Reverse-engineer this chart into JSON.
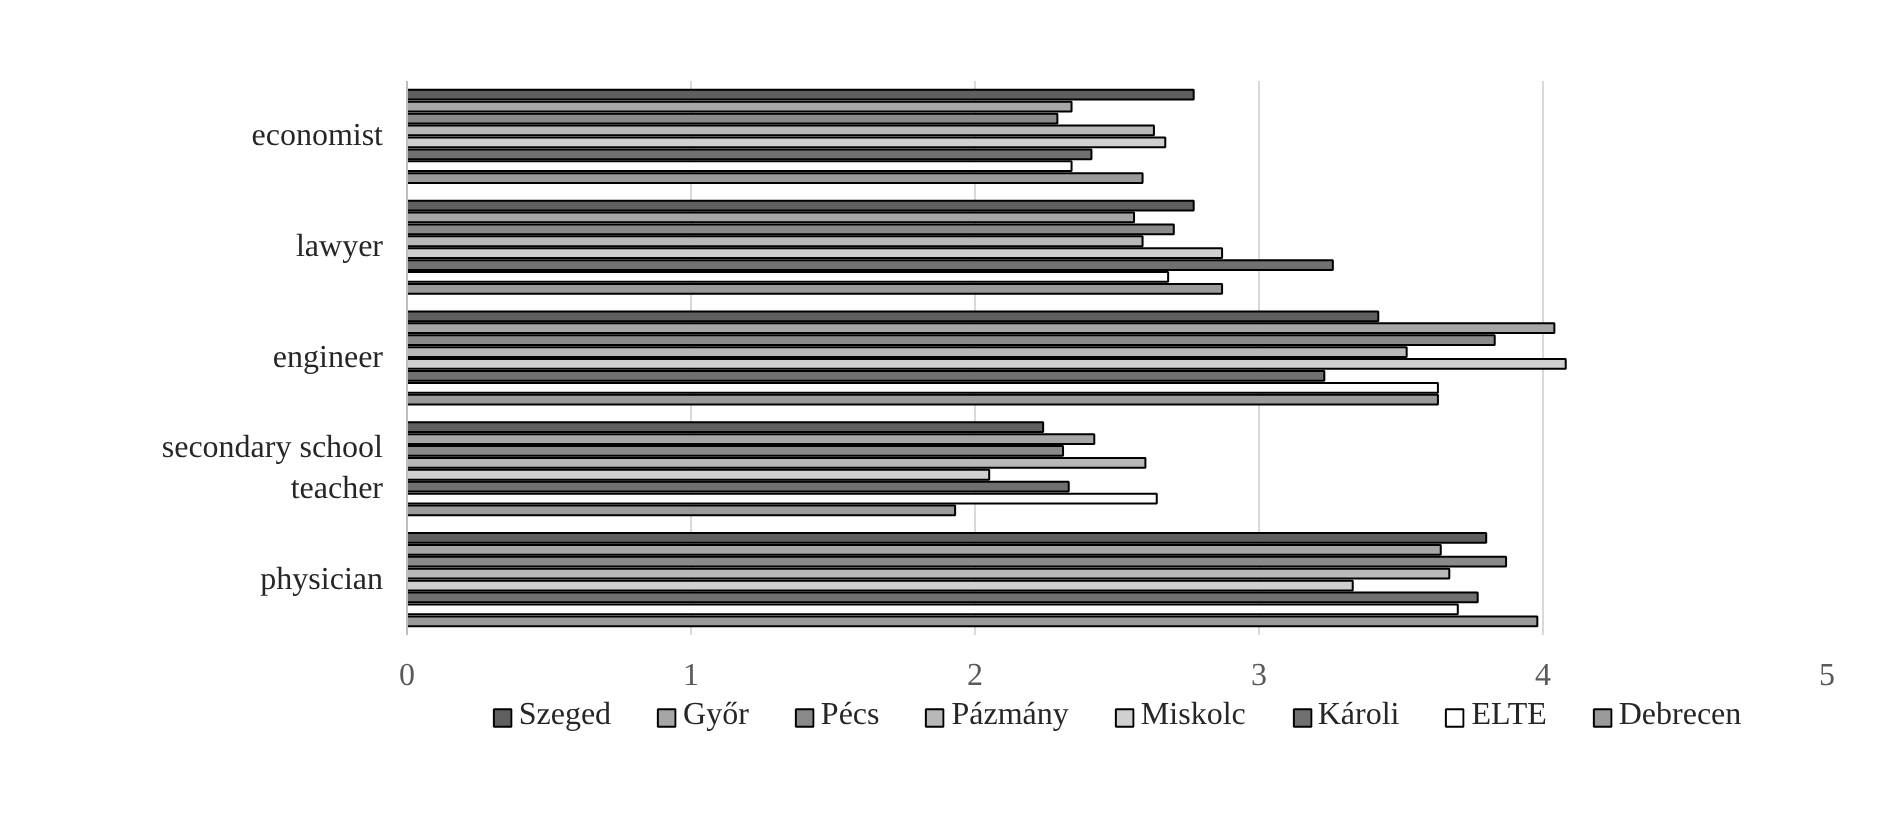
{
  "chart_data": {
    "type": "bar",
    "orientation": "horizontal",
    "categories": [
      "economist",
      "lawyer",
      "engineer",
      "secondary school teacher",
      "physician"
    ],
    "series": [
      {
        "name": "Szeged",
        "color": "#5f5f5f",
        "values": [
          2.77,
          2.77,
          3.42,
          2.24,
          3.8
        ]
      },
      {
        "name": "Győr",
        "color": "#a6a6a6",
        "values": [
          2.34,
          2.56,
          4.04,
          2.42,
          3.64
        ]
      },
      {
        "name": "Pécs",
        "color": "#8a8a8a",
        "values": [
          2.29,
          2.7,
          3.83,
          2.31,
          3.87
        ]
      },
      {
        "name": "Pázmány",
        "color": "#b8b8b8",
        "values": [
          2.63,
          2.59,
          3.52,
          2.6,
          3.67
        ]
      },
      {
        "name": "Miskolc",
        "color": "#d0d0d0",
        "values": [
          2.67,
          2.87,
          4.08,
          2.05,
          3.33
        ]
      },
      {
        "name": "Károli",
        "color": "#707070",
        "values": [
          2.41,
          3.26,
          3.23,
          2.33,
          3.77
        ]
      },
      {
        "name": "ELTE",
        "color": "#ffffff",
        "values": [
          2.34,
          2.68,
          3.63,
          2.64,
          3.7
        ]
      },
      {
        "name": "Debrecen",
        "color": "#9a9a9a",
        "values": [
          2.59,
          2.87,
          3.63,
          1.93,
          3.98
        ]
      }
    ],
    "xlim": [
      0,
      5
    ],
    "xticks": [
      0,
      1,
      2,
      3,
      4,
      5
    ],
    "grid": "x",
    "legend": "bottom"
  }
}
